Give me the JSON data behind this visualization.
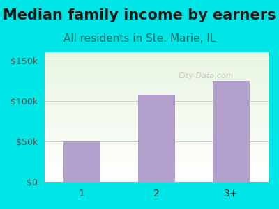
{
  "title": "Median family income by earners",
  "subtitle": "All residents in Ste. Marie, IL",
  "categories": [
    "1",
    "2",
    "3+"
  ],
  "values": [
    50000,
    108000,
    125000
  ],
  "bar_color": "#b3a0cc",
  "title_color": "#1a1a1a",
  "subtitle_color": "#007070",
  "bg_color": "#00e5e5",
  "yticks": [
    0,
    50000,
    100000,
    150000
  ],
  "ytick_labels": [
    "$0",
    "$50k",
    "$100k",
    "$150k"
  ],
  "ylim": [
    0,
    160000
  ],
  "watermark": "City-Data.com",
  "title_fontsize": 15,
  "subtitle_fontsize": 11
}
